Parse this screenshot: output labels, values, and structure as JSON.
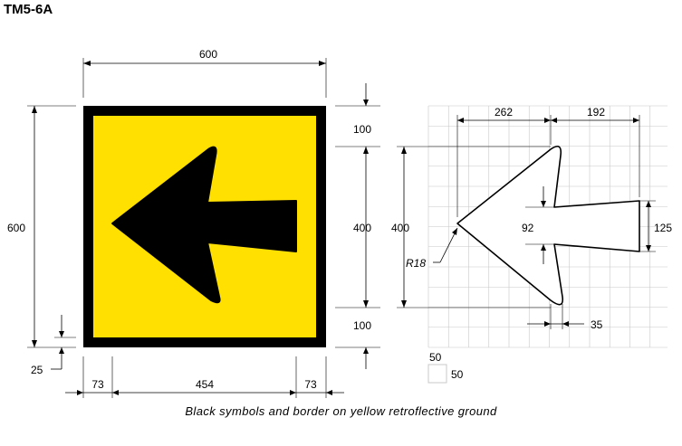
{
  "title": "TM5-6A",
  "caption": "Black symbols and border on yellow retroflective ground",
  "colors": {
    "sign_face": "#ffe000",
    "symbol": "#000000",
    "grid": "#c8c8c8"
  },
  "sign": {
    "dim_width": "600",
    "dim_height": "600",
    "dim_border": "25",
    "dim_left": "73",
    "dim_shaft": "454",
    "dim_right": "73",
    "dim_top": "100",
    "dim_middle": "400",
    "dim_bottom": "100"
  },
  "detail": {
    "dim_head_width": "262",
    "dim_shaft_length": "192",
    "dim_height": "400",
    "dim_shaft_inner": "92",
    "dim_shaft_end": "125",
    "dim_radius": "R18",
    "dim_wing": "35",
    "grid_scale_v": "50",
    "grid_scale_h": "50"
  }
}
